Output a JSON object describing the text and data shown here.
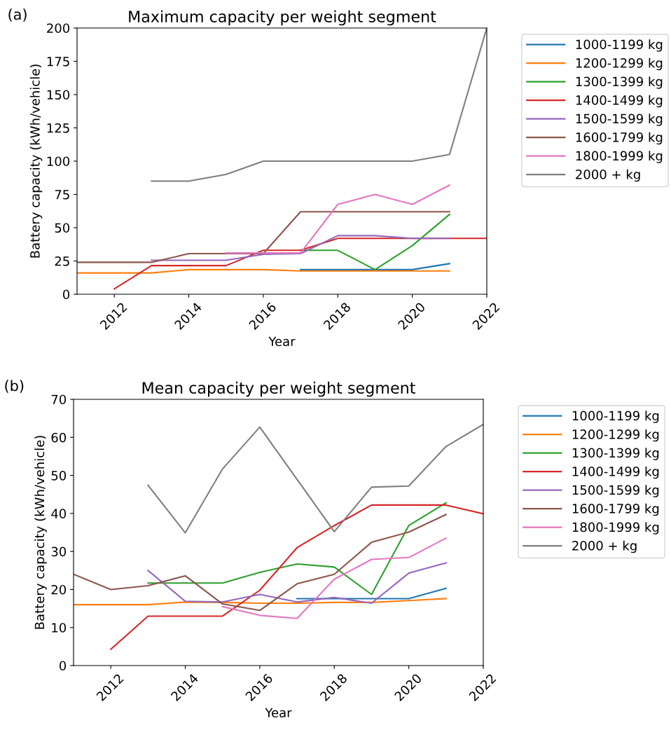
{
  "chart_data": [
    {
      "type": "line",
      "title": "Maximum capacity per weight segment",
      "xlabel": "Year",
      "ylabel": "Battery capacity (kWh/vehicle)",
      "annotations": [
        "(a)"
      ],
      "xlim": [
        2011,
        2022
      ],
      "xticks": [
        2012,
        2014,
        2016,
        2018,
        2020,
        2022
      ],
      "ylim": [
        0,
        200
      ],
      "yticks": [
        0,
        25,
        50,
        75,
        100,
        125,
        150,
        175,
        200
      ],
      "grid": false,
      "legend": "right",
      "marker": "none",
      "line_style": "solid",
      "series": [
        {
          "name": "1000-1199 kg",
          "color": "#1f77b4",
          "x": [
            2017,
            2018,
            2019,
            2020,
            2021
          ],
          "values": [
            18.5,
            18.5,
            18.5,
            18.5,
            23
          ]
        },
        {
          "name": "1200-1299 kg",
          "color": "#ff7f0e",
          "x": [
            2011,
            2012,
            2013,
            2014,
            2015,
            2016,
            2017,
            2018,
            2019,
            2020,
            2021
          ],
          "values": [
            16,
            16,
            16,
            18.5,
            18.5,
            18.5,
            17.5,
            17.5,
            17.5,
            17.5,
            17.5
          ]
        },
        {
          "name": "1300-1399 kg",
          "color": "#2ca02c",
          "x": [
            2017,
            2018,
            2019,
            2020,
            2021
          ],
          "values": [
            33,
            33,
            18.5,
            36.5,
            60
          ]
        },
        {
          "name": "1400-1499 kg",
          "color": "#d62728",
          "x": [
            2012,
            2013,
            2014,
            2015,
            2016,
            2017,
            2018,
            2019,
            2020,
            2021,
            2022
          ],
          "values": [
            4,
            21.5,
            21.5,
            21.5,
            33,
            33,
            42,
            42,
            42,
            42,
            42
          ]
        },
        {
          "name": "1500-1599 kg",
          "color": "#9467bd",
          "x": [
            2013,
            2014,
            2015,
            2016,
            2017,
            2018,
            2019,
            2020,
            2021
          ],
          "values": [
            25.5,
            25.5,
            25.5,
            30,
            30.5,
            44,
            44,
            42,
            42
          ]
        },
        {
          "name": "1600-1799 kg",
          "color": "#8c564b",
          "x": [
            2011,
            2012,
            2013,
            2014,
            2015,
            2016,
            2017,
            2018,
            2019,
            2020,
            2021
          ],
          "values": [
            24,
            24,
            24,
            30.5,
            30.5,
            30.5,
            62,
            62,
            62,
            62,
            62
          ]
        },
        {
          "name": "1800-1999 kg",
          "color": "#e377c2",
          "x": [
            2015,
            2016,
            2017,
            2018,
            2019,
            2020,
            2021
          ],
          "values": [
            31,
            31,
            31,
            67.5,
            75,
            67.5,
            82
          ]
        },
        {
          "name": "2000 + kg",
          "color": "#7f7f7f",
          "x": [
            2013,
            2014,
            2015,
            2016,
            2017,
            2018,
            2019,
            2020,
            2021,
            2022
          ],
          "values": [
            85,
            85,
            90,
            100,
            100,
            100,
            100,
            100,
            105,
            200
          ]
        }
      ]
    },
    {
      "type": "line",
      "title": "Mean capacity per weight segment",
      "xlabel": "Year",
      "ylabel": "Battery capacity (kWh/vehicle)",
      "annotations": [
        "(b)"
      ],
      "xlim": [
        2011,
        2022
      ],
      "xticks": [
        2012,
        2014,
        2016,
        2018,
        2020,
        2022
      ],
      "ylim": [
        0,
        70
      ],
      "yticks": [
        0,
        10,
        20,
        30,
        40,
        50,
        60,
        70
      ],
      "grid": false,
      "legend": "right",
      "marker": "none",
      "line_style": "solid",
      "series": [
        {
          "name": "1000-1199 kg",
          "color": "#1f77b4",
          "x": [
            2017,
            2018,
            2019,
            2020,
            2021
          ],
          "values": [
            17.6,
            17.6,
            17.6,
            17.6,
            20.3
          ]
        },
        {
          "name": "1200-1299 kg",
          "color": "#ff7f0e",
          "x": [
            2011,
            2012,
            2013,
            2014,
            2015,
            2016,
            2017,
            2018,
            2019,
            2020,
            2021
          ],
          "values": [
            16,
            16,
            16,
            16.7,
            16.6,
            16.4,
            16.4,
            16.6,
            16.6,
            17.1,
            17.6
          ]
        },
        {
          "name": "1300-1399 kg",
          "color": "#2ca02c",
          "x": [
            2013,
            2014,
            2015,
            2016,
            2017,
            2018,
            2019,
            2020,
            2021
          ],
          "values": [
            21.7,
            21.7,
            21.7,
            24.5,
            26.7,
            25.9,
            18.7,
            36.8,
            42.8
          ]
        },
        {
          "name": "1400-1499 kg",
          "color": "#d62728",
          "x": [
            2012,
            2013,
            2014,
            2015,
            2016,
            2017,
            2018,
            2019,
            2020,
            2021,
            2022
          ],
          "values": [
            4.3,
            13,
            13,
            13,
            19.8,
            31,
            36.8,
            42.2,
            42.2,
            42.2,
            39.9
          ]
        },
        {
          "name": "1500-1599 kg",
          "color": "#9467bd",
          "x": [
            2013,
            2014,
            2015,
            2016,
            2017,
            2018,
            2019,
            2020,
            2021
          ],
          "values": [
            25,
            16.9,
            16.7,
            18.7,
            16.7,
            17.9,
            16.4,
            24.3,
            27
          ]
        },
        {
          "name": "1600-1799 kg",
          "color": "#8c564b",
          "x": [
            2011,
            2012,
            2013,
            2014,
            2015,
            2016,
            2017,
            2018,
            2019,
            2020,
            2021
          ],
          "values": [
            24,
            20,
            21,
            23.6,
            16.2,
            14.5,
            21.5,
            24,
            32.4,
            35.1,
            39.7
          ]
        },
        {
          "name": "1800-1999 kg",
          "color": "#e377c2",
          "x": [
            2015,
            2016,
            2017,
            2018,
            2019,
            2020,
            2021
          ],
          "values": [
            15.5,
            13.2,
            12.4,
            22.7,
            27.9,
            28.4,
            33.5
          ]
        },
        {
          "name": "2000 + kg",
          "color": "#7f7f7f",
          "x": [
            2013,
            2014,
            2015,
            2016,
            2018,
            2019,
            2020,
            2021,
            2022
          ],
          "values": [
            47.4,
            34.9,
            51.7,
            62.7,
            35.2,
            46.9,
            47.2,
            57.6,
            63.4
          ]
        }
      ]
    }
  ]
}
